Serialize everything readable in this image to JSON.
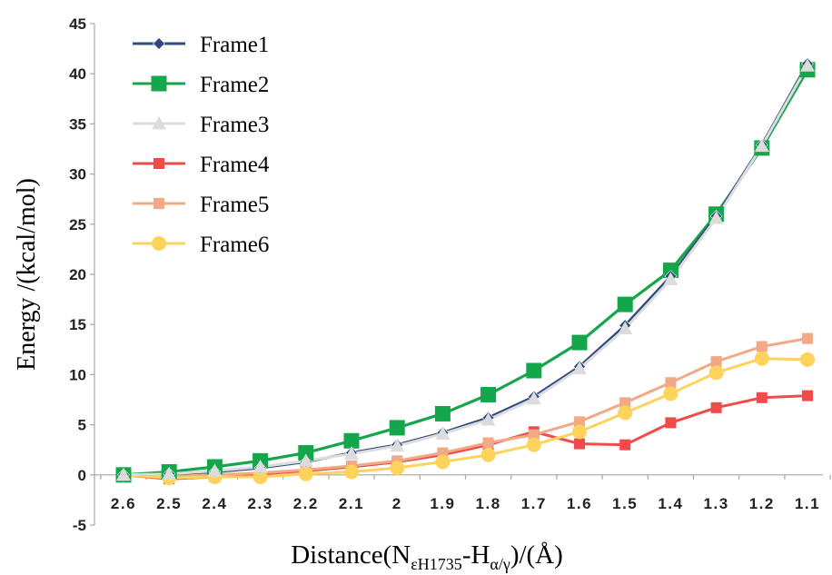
{
  "chart_data": {
    "type": "line",
    "xlabel": {
      "prefix": "Distance(N",
      "sub1": "εH1735",
      "mid": "-H",
      "sub2": "α/γ",
      "suffix": ")/(Å)"
    },
    "ylabel": "Energy /(kcal/mol)",
    "ylim": [
      -5,
      45
    ],
    "y_ticks": [
      "-5",
      "0",
      "5",
      "10",
      "15",
      "20",
      "25",
      "30",
      "35",
      "40",
      "45"
    ],
    "x": [
      "2.6",
      "2.5",
      "2.4",
      "2.3",
      "2.2",
      "2.1",
      "2",
      "1.9",
      "1.8",
      "1.7",
      "1.6",
      "1.5",
      "1.4",
      "1.3",
      "1.2",
      "1.1"
    ],
    "x_direction": "decreasing",
    "grid": false,
    "legend_position": "top-left",
    "series": [
      {
        "name": "Frame1",
        "color": "#2e4a7d",
        "marker": "diamond",
        "values": [
          0,
          0.1,
          0.3,
          0.7,
          1.3,
          2.2,
          3.0,
          4.2,
          5.7,
          7.8,
          10.8,
          14.9,
          19.8,
          25.8,
          32.9,
          41.0
        ]
      },
      {
        "name": "Frame2",
        "color": "#14a64a",
        "marker": "square",
        "values": [
          0,
          0.3,
          0.8,
          1.4,
          2.2,
          3.4,
          4.7,
          6.1,
          8.0,
          10.4,
          13.2,
          17.0,
          20.4,
          26.0,
          32.6,
          40.4
        ]
      },
      {
        "name": "Frame3",
        "color": "#dcdcdc",
        "marker": "triangle",
        "values": [
          0,
          0.1,
          0.4,
          0.8,
          1.4,
          2.1,
          2.9,
          4.1,
          5.5,
          7.6,
          10.6,
          14.6,
          19.5,
          25.6,
          32.8,
          40.8
        ]
      },
      {
        "name": "Frame4",
        "color": "#f04a4a",
        "marker": "square-small",
        "values": [
          0,
          -0.4,
          -0.2,
          0.1,
          0.4,
          0.8,
          1.3,
          2.0,
          3.0,
          4.3,
          3.1,
          3.0,
          5.2,
          6.7,
          7.7,
          7.9
        ]
      },
      {
        "name": "Frame5",
        "color": "#f2a985",
        "marker": "square-small",
        "values": [
          0,
          -0.2,
          0.0,
          0.2,
          0.5,
          0.9,
          1.4,
          2.2,
          3.2,
          4.0,
          5.3,
          7.2,
          9.2,
          11.3,
          12.8,
          13.6
        ]
      },
      {
        "name": "Frame6",
        "color": "#fdd35c",
        "marker": "circle",
        "values": [
          0,
          -0.3,
          -0.2,
          -0.2,
          0.1,
          0.3,
          0.7,
          1.3,
          2.0,
          3.0,
          4.3,
          6.2,
          8.1,
          10.2,
          11.6,
          11.5
        ]
      }
    ]
  }
}
